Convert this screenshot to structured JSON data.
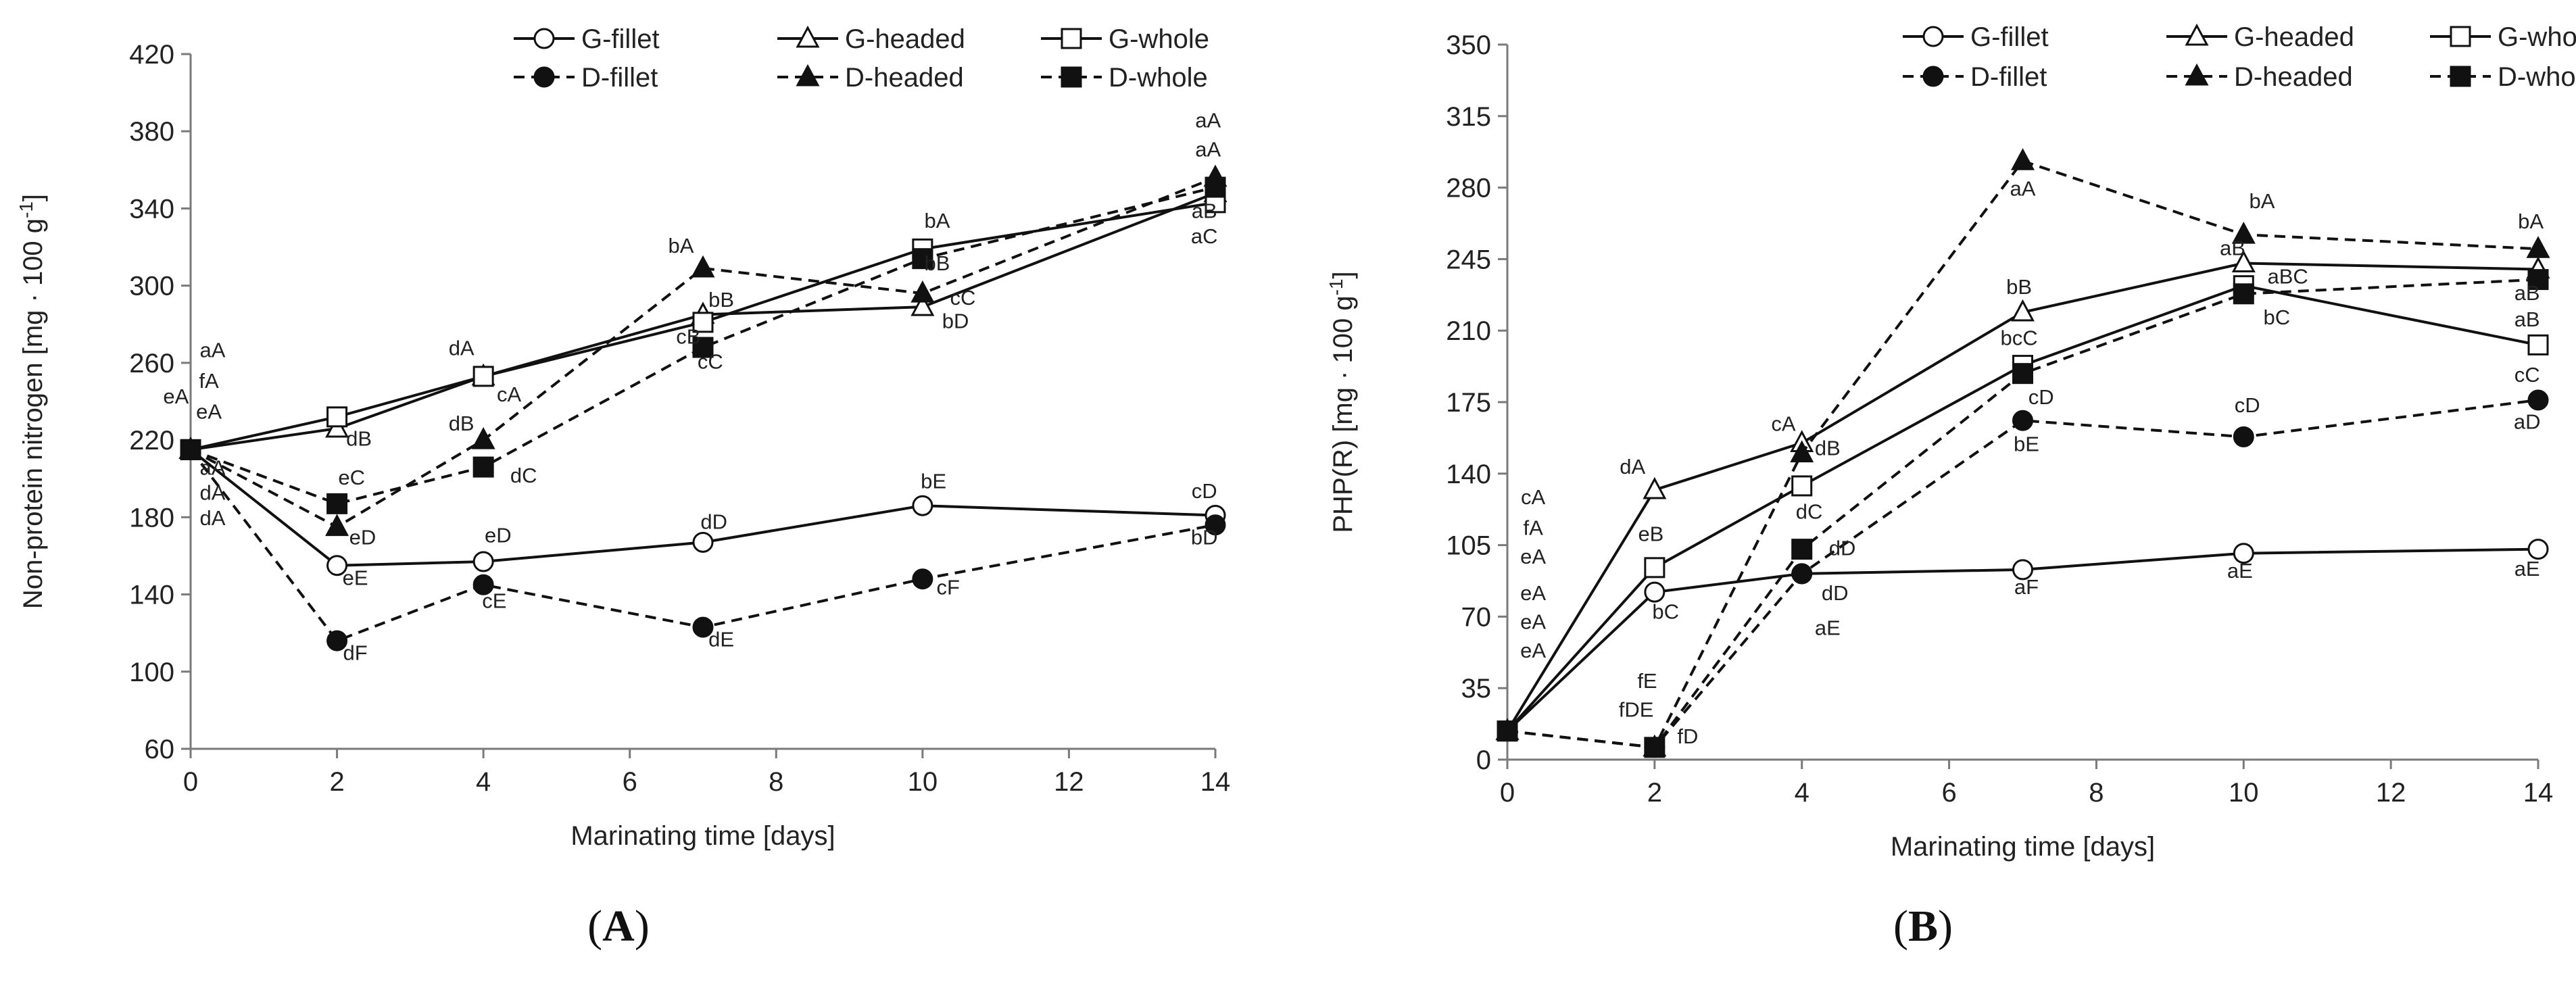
{
  "chart_data": [
    {
      "type": "line",
      "panel_label": "A",
      "xlabel": "Marinating time [days]",
      "ylabel": "Non-protein nitrogen [mg · 100 g",
      "ylabel_sup": "-1",
      "ylabel_close": "]",
      "xlim": [
        0,
        14
      ],
      "ylim": [
        60,
        420
      ],
      "xticks": [
        0,
        2,
        4,
        6,
        8,
        10,
        12,
        14
      ],
      "yticks": [
        60,
        100,
        140,
        180,
        220,
        260,
        300,
        340,
        380,
        420
      ],
      "grid": false,
      "legend_position": "top-right",
      "x": [
        0,
        2,
        4,
        7,
        10,
        14
      ],
      "series": [
        {
          "name": "G-fillet",
          "dashed": false,
          "marker": "circle",
          "filled": false,
          "values": [
            215,
            155,
            157,
            167,
            186,
            181
          ]
        },
        {
          "name": "G-headed",
          "dashed": false,
          "marker": "triangle",
          "filled": false,
          "values": [
            215,
            226,
            253,
            285,
            289,
            348
          ]
        },
        {
          "name": "G-whole",
          "dashed": false,
          "marker": "square",
          "filled": false,
          "values": [
            215,
            232,
            253,
            281,
            319,
            343
          ]
        },
        {
          "name": "D-fillet",
          "dashed": true,
          "marker": "circle",
          "filled": true,
          "values": [
            215,
            116,
            145,
            123,
            148,
            176
          ]
        },
        {
          "name": "D-headed",
          "dashed": true,
          "marker": "triangle",
          "filled": true,
          "values": [
            215,
            175,
            220,
            309,
            296,
            356
          ]
        },
        {
          "name": "D-whole",
          "dashed": true,
          "marker": "square",
          "filled": true,
          "values": [
            215,
            187,
            206,
            268,
            314,
            351
          ]
        }
      ],
      "annotations": [
        {
          "text": "aA",
          "x": 0.3,
          "y": 263
        },
        {
          "text": "fA",
          "x": 0.25,
          "y": 247
        },
        {
          "text": "eA",
          "x": 0.25,
          "y": 231
        },
        {
          "text": "aA",
          "x": 0.3,
          "y": 202
        },
        {
          "text": "dA",
          "x": 0.3,
          "y": 189
        },
        {
          "text": "dA",
          "x": 0.3,
          "y": 176
        },
        {
          "text": "eA",
          "x": -0.2,
          "y": 239
        },
        {
          "text": "dB",
          "x": 2.3,
          "y": 217
        },
        {
          "text": "eC",
          "x": 2.2,
          "y": 197
        },
        {
          "text": "eD",
          "x": 2.35,
          "y": 166
        },
        {
          "text": "eE",
          "x": 2.25,
          "y": 145
        },
        {
          "text": "dF",
          "x": 2.25,
          "y": 106
        },
        {
          "text": "dA",
          "x": 3.7,
          "y": 264
        },
        {
          "text": "cA",
          "x": 4.35,
          "y": 240
        },
        {
          "text": "dB",
          "x": 3.7,
          "y": 225
        },
        {
          "text": "dC",
          "x": 4.55,
          "y": 198
        },
        {
          "text": "eD",
          "x": 4.2,
          "y": 167
        },
        {
          "text": "cE",
          "x": 4.15,
          "y": 133
        },
        {
          "text": "bA",
          "x": 6.7,
          "y": 317
        },
        {
          "text": "bB",
          "x": 7.25,
          "y": 289
        },
        {
          "text": "cB",
          "x": 6.8,
          "y": 270
        },
        {
          "text": "cC",
          "x": 7.1,
          "y": 257
        },
        {
          "text": "dD",
          "x": 7.15,
          "y": 174
        },
        {
          "text": "dE",
          "x": 7.25,
          "y": 113
        },
        {
          "text": "bA",
          "x": 10.2,
          "y": 330
        },
        {
          "text": "bB",
          "x": 10.2,
          "y": 308
        },
        {
          "text": "cC",
          "x": 10.55,
          "y": 290
        },
        {
          "text": "bD",
          "x": 10.45,
          "y": 278
        },
        {
          "text": "bE",
          "x": 10.15,
          "y": 195
        },
        {
          "text": "cF",
          "x": 10.35,
          "y": 140
        },
        {
          "text": "aA",
          "x": 13.9,
          "y": 382
        },
        {
          "text": "aA",
          "x": 13.9,
          "y": 367
        },
        {
          "text": "aB",
          "x": 13.85,
          "y": 335
        },
        {
          "text": "aC",
          "x": 13.85,
          "y": 322
        },
        {
          "text": "cD",
          "x": 13.85,
          "y": 190
        },
        {
          "text": "bD",
          "x": 13.85,
          "y": 166
        }
      ]
    },
    {
      "type": "line",
      "panel_label": "B",
      "xlabel": "Marinating time [days]",
      "ylabel": "PHP(R) [mg · 100 g",
      "ylabel_sup": "-1",
      "ylabel_close": "]",
      "xlim": [
        0,
        14
      ],
      "ylim": [
        0,
        350
      ],
      "xticks": [
        0,
        2,
        4,
        6,
        8,
        10,
        12,
        14
      ],
      "yticks": [
        0,
        35,
        70,
        105,
        140,
        175,
        210,
        245,
        280,
        315,
        350
      ],
      "grid": false,
      "legend_position": "top-right",
      "x": [
        0,
        2,
        4,
        7,
        10,
        14
      ],
      "series": [
        {
          "name": "G-fillet",
          "dashed": false,
          "marker": "circle",
          "filled": false,
          "values": [
            14,
            82,
            91,
            93,
            101,
            103
          ]
        },
        {
          "name": "G-headed",
          "dashed": false,
          "marker": "triangle",
          "filled": false,
          "values": [
            14,
            132,
            155,
            219,
            243,
            240
          ]
        },
        {
          "name": "G-whole",
          "dashed": false,
          "marker": "square",
          "filled": false,
          "values": [
            14,
            94,
            134,
            193,
            232,
            203
          ]
        },
        {
          "name": "D-fillet",
          "dashed": true,
          "marker": "circle",
          "filled": true,
          "values": [
            14,
            6,
            91,
            166,
            158,
            176
          ]
        },
        {
          "name": "D-headed",
          "dashed": true,
          "marker": "triangle",
          "filled": true,
          "values": [
            14,
            6,
            150,
            293,
            257,
            250
          ]
        },
        {
          "name": "D-whole",
          "dashed": true,
          "marker": "square",
          "filled": true,
          "values": [
            14,
            6,
            103,
            189,
            228,
            235
          ]
        }
      ],
      "annotations": [
        {
          "text": "cA",
          "x": 0.35,
          "y": 125
        },
        {
          "text": "fA",
          "x": 0.35,
          "y": 110
        },
        {
          "text": "eA",
          "x": 0.35,
          "y": 96
        },
        {
          "text": "eA",
          "x": 0.35,
          "y": 78
        },
        {
          "text": "eA",
          "x": 0.35,
          "y": 64
        },
        {
          "text": "eA",
          "x": 0.35,
          "y": 50
        },
        {
          "text": "dA",
          "x": 1.7,
          "y": 140
        },
        {
          "text": "eB",
          "x": 1.95,
          "y": 107
        },
        {
          "text": "bC",
          "x": 2.15,
          "y": 69
        },
        {
          "text": "fE",
          "x": 1.9,
          "y": 35
        },
        {
          "text": "fDE",
          "x": 1.75,
          "y": 21
        },
        {
          "text": "fD",
          "x": 2.45,
          "y": 8
        },
        {
          "text": "cA",
          "x": 3.75,
          "y": 161
        },
        {
          "text": "dB",
          "x": 4.35,
          "y": 149
        },
        {
          "text": "dC",
          "x": 4.1,
          "y": 118
        },
        {
          "text": "dD",
          "x": 4.55,
          "y": 100
        },
        {
          "text": "dD",
          "x": 4.45,
          "y": 78
        },
        {
          "text": "aE",
          "x": 4.35,
          "y": 61
        },
        {
          "text": "aA",
          "x": 7.0,
          "y": 276
        },
        {
          "text": "bB",
          "x": 6.95,
          "y": 228
        },
        {
          "text": "bcC",
          "x": 6.95,
          "y": 203
        },
        {
          "text": "cD",
          "x": 7.25,
          "y": 174
        },
        {
          "text": "bE",
          "x": 7.05,
          "y": 151
        },
        {
          "text": "aF",
          "x": 7.05,
          "y": 81
        },
        {
          "text": "bA",
          "x": 10.25,
          "y": 270
        },
        {
          "text": "aB",
          "x": 9.85,
          "y": 247
        },
        {
          "text": "aBC",
          "x": 10.6,
          "y": 233
        },
        {
          "text": "bC",
          "x": 10.45,
          "y": 213
        },
        {
          "text": "cD",
          "x": 10.05,
          "y": 170
        },
        {
          "text": "aE",
          "x": 9.95,
          "y": 89
        },
        {
          "text": "bA",
          "x": 13.9,
          "y": 260
        },
        {
          "text": "aB",
          "x": 13.85,
          "y": 225
        },
        {
          "text": "aB",
          "x": 13.85,
          "y": 212
        },
        {
          "text": "cC",
          "x": 13.85,
          "y": 185
        },
        {
          "text": "aD",
          "x": 13.85,
          "y": 162
        },
        {
          "text": "aE",
          "x": 13.85,
          "y": 90
        }
      ]
    }
  ]
}
